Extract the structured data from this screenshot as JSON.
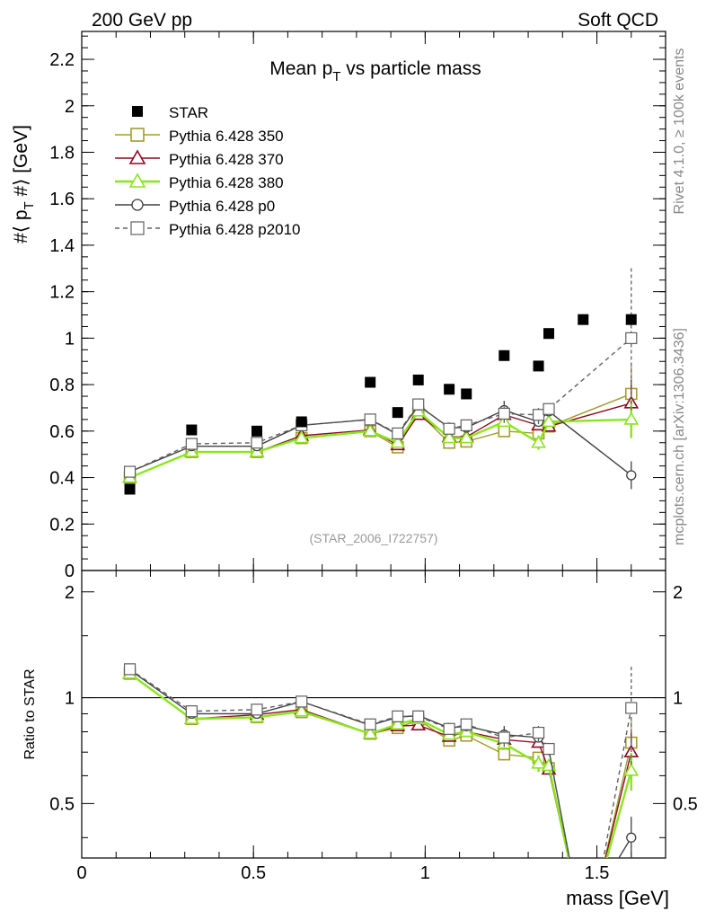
{
  "header": {
    "left": "200 GeV pp",
    "right": "Soft QCD"
  },
  "side": {
    "rivet": "Rivet 4.1.0, ≥ 100k events",
    "mcplots": "mcplots.cern.ch [arXiv:1306.3436]"
  },
  "colors": {
    "star": "#000000",
    "p350": "#a29c2e",
    "p370": "#8b0b24",
    "p380": "#8ae61c",
    "p0": "#404040",
    "p2010": "#606060"
  },
  "chart_data": {
    "type": "line",
    "title": "Mean p_T vs particle mass",
    "title_parts": {
      "pre": "Mean p",
      "sub": "T",
      "post": " vs particle mass"
    },
    "watermark": "(STAR_2006_I722757)",
    "xlabel": "mass [GeV]",
    "ylabel": "#⟨ p_T #⟩ [GeV]",
    "ylabel_parts": {
      "pre": "#⟨ p",
      "sub": "T",
      "post": " #⟩ [GeV]"
    },
    "xlim": [
      0,
      1.7
    ],
    "ylim": [
      0,
      2.32
    ],
    "xticks": [
      "0",
      "0.5",
      "1",
      "1.5"
    ],
    "yticks": [
      "0",
      "0.2",
      "0.4",
      "0.6",
      "0.8",
      "1",
      "1.2",
      "1.4",
      "1.6",
      "1.8",
      "2",
      "2.2"
    ],
    "ratio": {
      "ylabel": "Ratio to STAR",
      "ylim": [
        0.35,
        2.3
      ],
      "scale": "log",
      "yticks": [
        "0.5",
        "1",
        "2"
      ]
    },
    "x": [
      0.14,
      0.32,
      0.51,
      0.64,
      0.84,
      0.92,
      0.98,
      1.07,
      1.12,
      1.23,
      1.33,
      1.36,
      1.6
    ],
    "star_extra": {
      "x": [
        1.46
      ],
      "y": [
        1.08
      ]
    },
    "series": [
      {
        "name": "STAR",
        "key": "star",
        "marker": "filled-square",
        "y": [
          0.35,
          0.605,
          0.6,
          0.64,
          0.81,
          0.68,
          0.82,
          0.78,
          0.76,
          0.925,
          0.88,
          1.02,
          1.08
        ]
      },
      {
        "name": "Pythia 6.428 350",
        "key": "p350",
        "marker": "open-square",
        "y": [
          0.4,
          0.51,
          0.51,
          0.57,
          0.6,
          0.53,
          0.68,
          0.55,
          0.555,
          0.6,
          0.59,
          0.62,
          0.76
        ],
        "err": [
          0,
          0,
          0,
          0,
          0,
          0,
          0,
          0,
          0,
          0,
          0,
          0,
          0.12
        ]
      },
      {
        "name": "Pythia 6.428 370",
        "key": "p370",
        "marker": "open-triangle",
        "y": [
          0.4,
          0.51,
          0.51,
          0.58,
          0.605,
          0.54,
          0.67,
          0.575,
          0.575,
          0.67,
          0.625,
          0.62,
          0.72
        ],
        "err": [
          0,
          0,
          0,
          0,
          0,
          0,
          0,
          0,
          0,
          0,
          0,
          0,
          0.1
        ]
      },
      {
        "name": "Pythia 6.428 380",
        "key": "p380",
        "marker": "open-triangle",
        "y": [
          0.4,
          0.51,
          0.51,
          0.57,
          0.6,
          0.55,
          0.685,
          0.57,
          0.57,
          0.64,
          0.55,
          0.64,
          0.65
        ],
        "err": [
          0,
          0,
          0,
          0,
          0,
          0,
          0,
          0,
          0,
          0,
          0.03,
          0,
          0.08
        ]
      },
      {
        "name": "Pythia 6.428 p0",
        "key": "p0",
        "marker": "open-circle",
        "y": [
          0.425,
          0.535,
          0.535,
          0.625,
          0.65,
          0.585,
          0.71,
          0.615,
          0.615,
          0.69,
          0.64,
          0.685,
          0.41
        ],
        "err": [
          0,
          0,
          0,
          0,
          0,
          0,
          0.02,
          0,
          0,
          0.04,
          0.02,
          0.02,
          0.06
        ]
      },
      {
        "name": "Pythia 6.428 p2010",
        "key": "p2010",
        "marker": "open-square-dashed",
        "y": [
          0.425,
          0.545,
          0.55,
          0.625,
          0.65,
          0.59,
          0.715,
          0.61,
          0.625,
          0.675,
          0.67,
          0.695,
          1.0
        ],
        "err": [
          0,
          0,
          0,
          0,
          0,
          0,
          0.02,
          0,
          0,
          0.04,
          0.04,
          0.02,
          0.31
        ]
      }
    ],
    "ratio_series": [
      {
        "key": "p350",
        "y": [
          1.17,
          0.87,
          0.88,
          0.91,
          0.79,
          0.82,
          0.865,
          0.755,
          0.78,
          0.69,
          0.675,
          0.63,
          0.745
        ]
      },
      {
        "key": "p370",
        "y": [
          1.17,
          0.87,
          0.895,
          0.925,
          0.79,
          0.83,
          0.835,
          0.775,
          0.8,
          0.76,
          0.745,
          0.625,
          0.7
        ]
      },
      {
        "key": "p380",
        "y": [
          1.17,
          0.87,
          0.88,
          0.915,
          0.79,
          0.84,
          0.87,
          0.785,
          0.8,
          0.74,
          0.65,
          0.64,
          0.62
        ]
      },
      {
        "key": "p0",
        "y": [
          1.2,
          0.9,
          0.9,
          0.975,
          0.835,
          0.88,
          0.89,
          0.82,
          0.83,
          0.785,
          0.77,
          0.71,
          0.4
        ]
      },
      {
        "key": "p2010",
        "y": [
          1.205,
          0.915,
          0.925,
          0.975,
          0.84,
          0.885,
          0.885,
          0.815,
          0.84,
          0.77,
          0.795,
          0.715,
          0.935
        ]
      }
    ]
  }
}
